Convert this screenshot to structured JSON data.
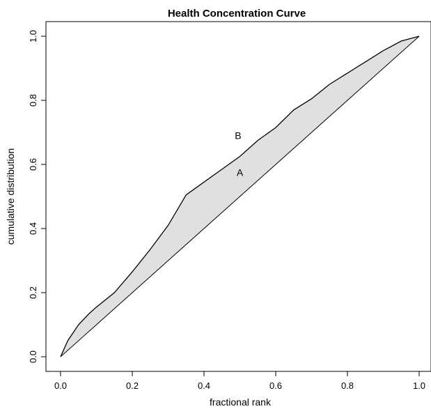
{
  "chart_data": {
    "type": "area",
    "title": "Health Concentration Curve",
    "xlabel": "fractional rank",
    "ylabel": "cumulative distribution",
    "xlim": [
      0,
      1
    ],
    "ylim": [
      0,
      1
    ],
    "x_ticks": [
      "0.0",
      "0.2",
      "0.4",
      "0.6",
      "0.8",
      "1.0"
    ],
    "y_ticks": [
      "0.0",
      "0.2",
      "0.4",
      "0.6",
      "0.8",
      "1.0"
    ],
    "grid": false,
    "fill_color": "#e0e0e0",
    "line_color": "#000000",
    "series": [
      {
        "type": "line",
        "x": [
          0.0,
          0.02,
          0.05,
          0.08,
          0.1,
          0.15,
          0.2,
          0.25,
          0.3,
          0.35,
          0.4,
          0.45,
          0.5,
          0.55,
          0.6,
          0.65,
          0.7,
          0.75,
          0.8,
          0.85,
          0.9,
          0.95,
          1.0
        ],
        "y": [
          0.0,
          0.05,
          0.1,
          0.135,
          0.155,
          0.2,
          0.265,
          0.335,
          0.41,
          0.505,
          0.545,
          0.585,
          0.625,
          0.675,
          0.715,
          0.77,
          0.805,
          0.85,
          0.885,
          0.92,
          0.955,
          0.985,
          1.0
        ]
      },
      {
        "type": "line",
        "x": [
          0.0,
          1.0
        ],
        "y": [
          0.0,
          1.0
        ]
      }
    ],
    "annotations": [
      {
        "text": "B",
        "x": 0.495,
        "y": 0.69
      },
      {
        "text": "A",
        "x": 0.5,
        "y": 0.575
      }
    ]
  }
}
